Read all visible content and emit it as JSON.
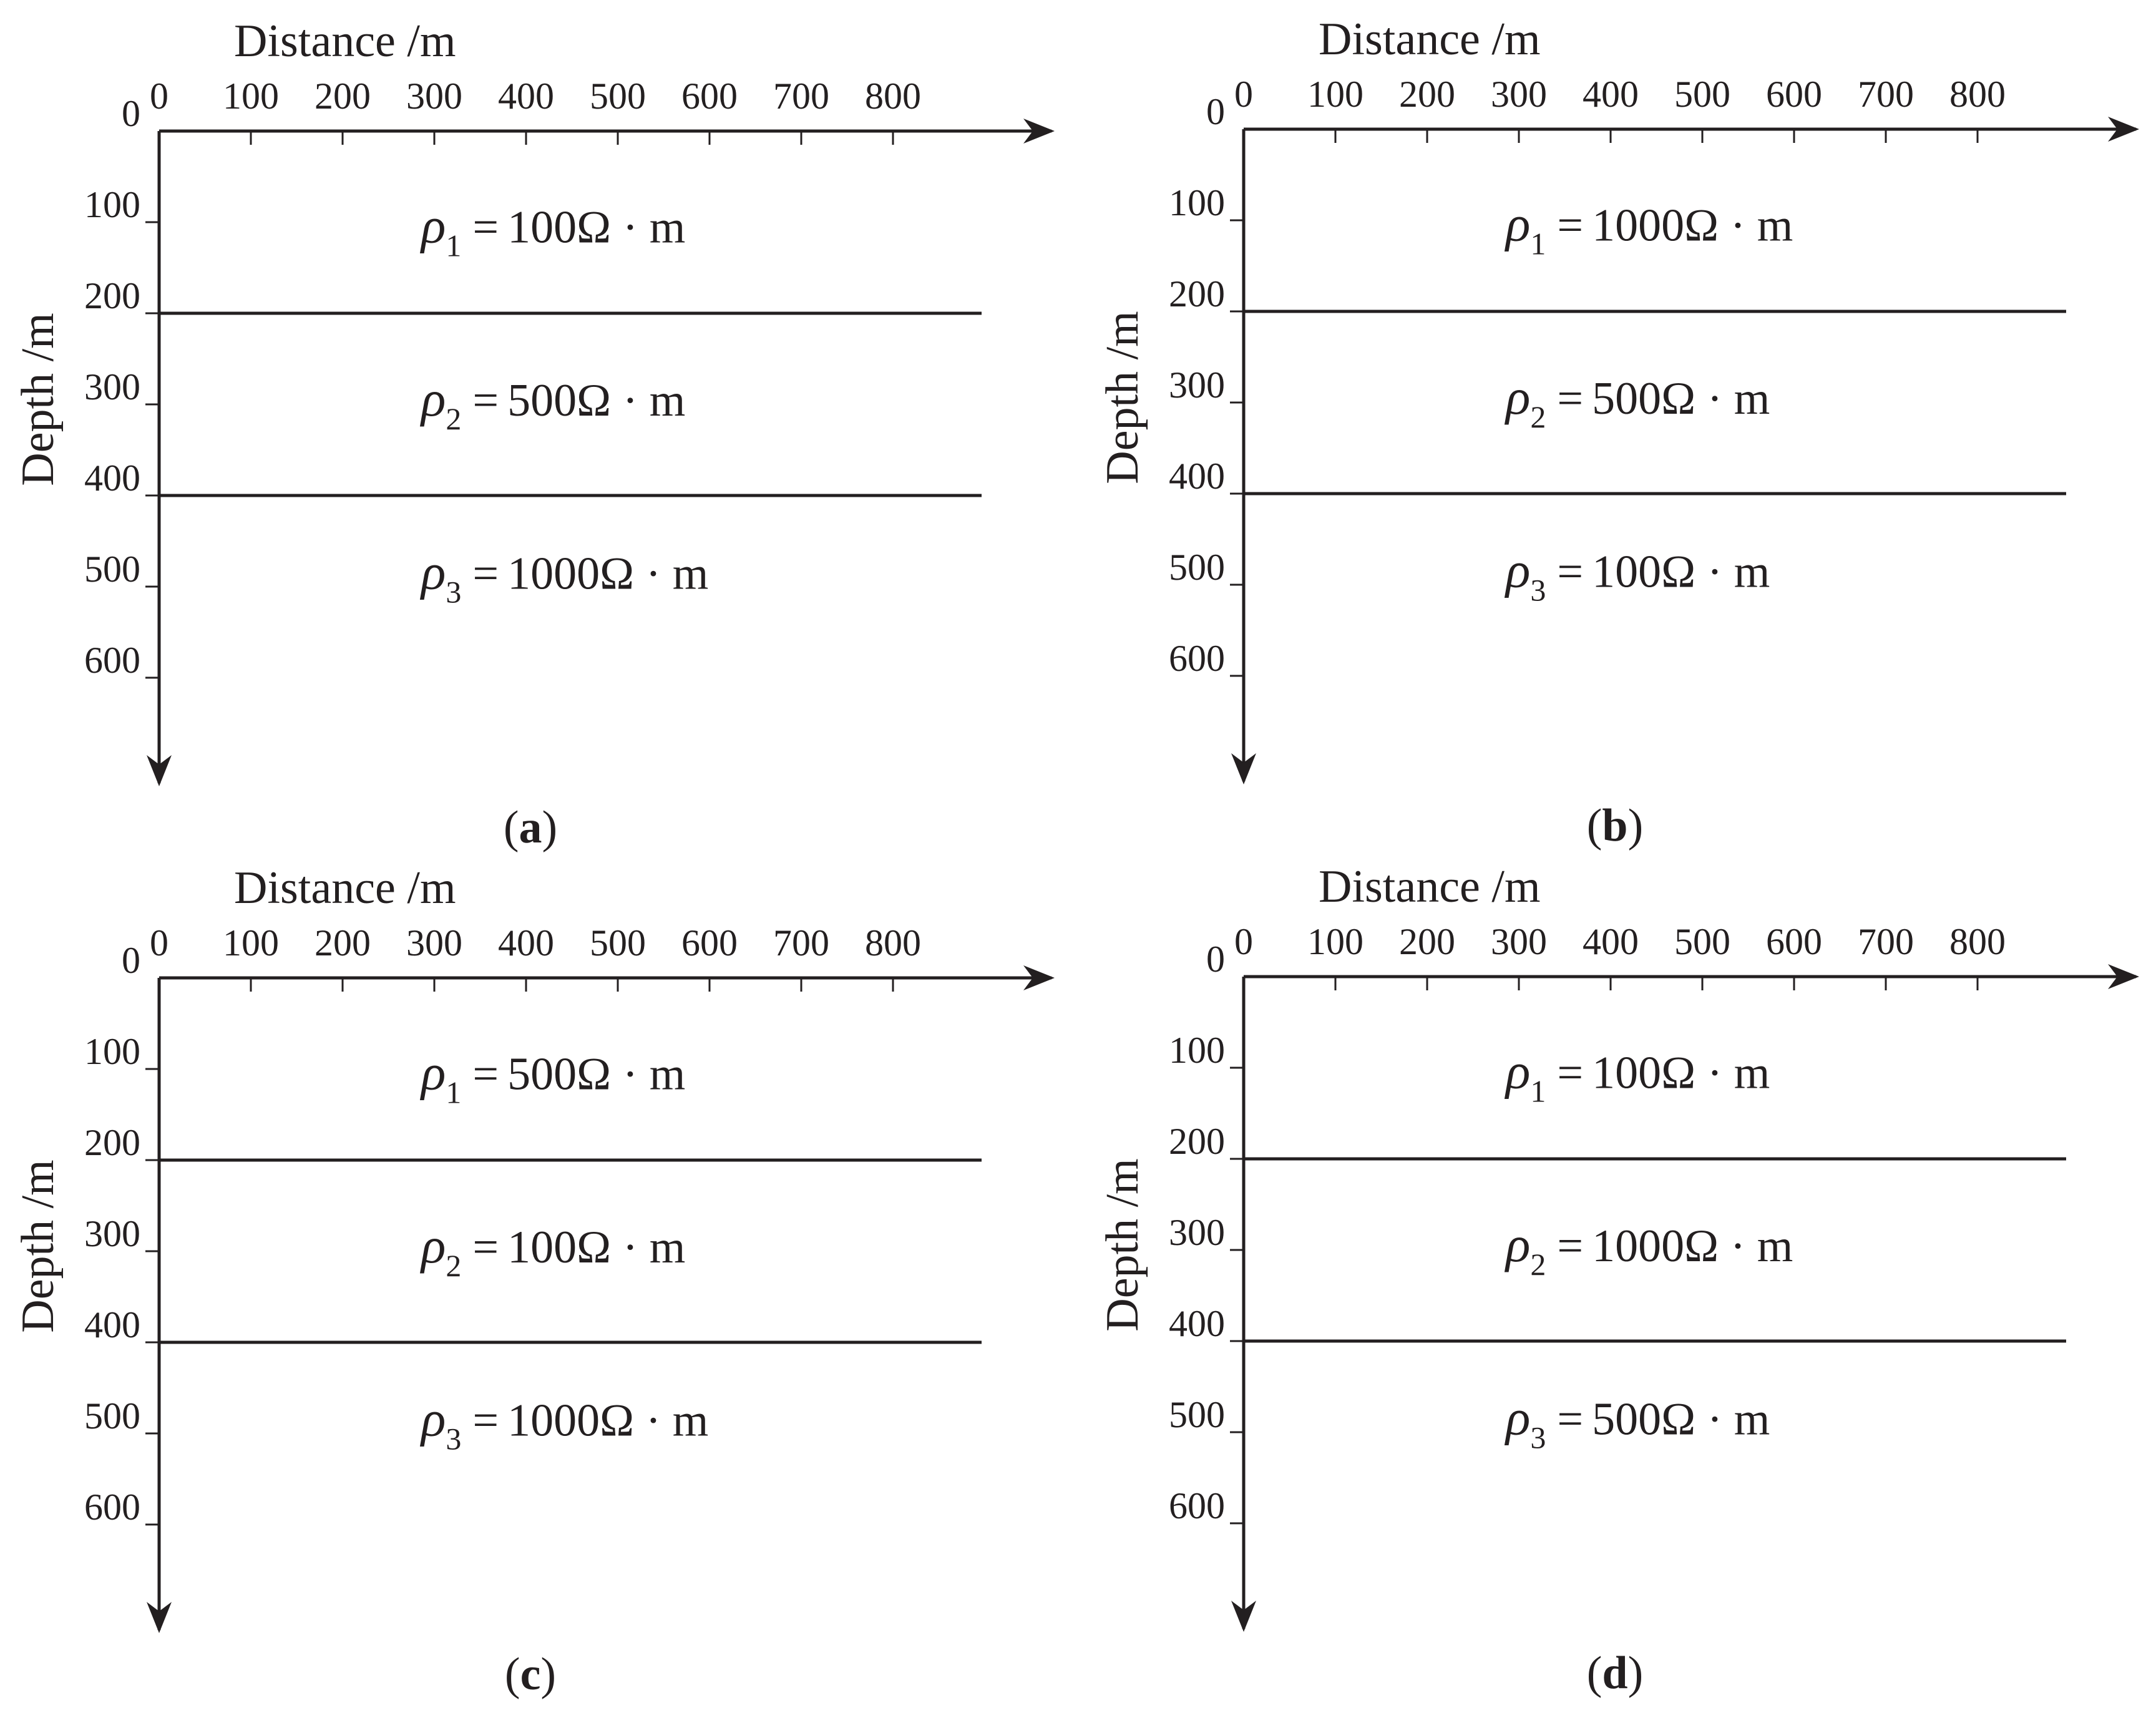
{
  "figure": {
    "x_axis_title": "Distance /m",
    "y_axis_title": "Depth /m",
    "x_ticks": [
      "0",
      "100",
      "200",
      "300",
      "400",
      "500",
      "600",
      "700",
      "800"
    ],
    "y_ticks": [
      "0",
      "100",
      "200",
      "300",
      "400",
      "500",
      "600"
    ],
    "boundary_depths": [
      200,
      400
    ],
    "resistivity_unit": "Ω · m",
    "symbol": "ρ"
  },
  "panels": [
    {
      "caption": "a",
      "layers": [
        {
          "subscript": "1",
          "value": "100"
        },
        {
          "subscript": "2",
          "value": "500"
        },
        {
          "subscript": "3",
          "value": "1000"
        }
      ]
    },
    {
      "caption": "b",
      "layers": [
        {
          "subscript": "1",
          "value": "1000"
        },
        {
          "subscript": "2",
          "value": "500"
        },
        {
          "subscript": "3",
          "value": "100"
        }
      ]
    },
    {
      "caption": "c",
      "layers": [
        {
          "subscript": "1",
          "value": "500"
        },
        {
          "subscript": "2",
          "value": "100"
        },
        {
          "subscript": "3",
          "value": "1000"
        }
      ]
    },
    {
      "caption": "d",
      "layers": [
        {
          "subscript": "1",
          "value": "100"
        },
        {
          "subscript": "2",
          "value": "1000"
        },
        {
          "subscript": "3",
          "value": "500"
        }
      ]
    }
  ]
}
